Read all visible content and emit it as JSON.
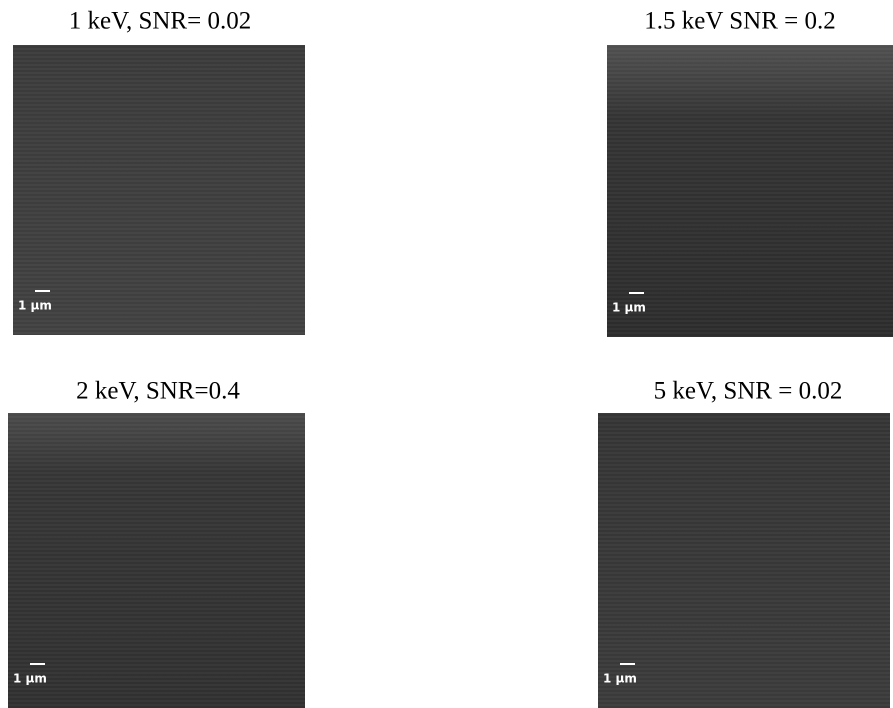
{
  "panels": [
    {
      "title": "1 keV, SNR= 0.02",
      "scale_bar": "1 µm"
    },
    {
      "title": "1.5 keV SNR = 0.2",
      "scale_bar": "1 µm"
    },
    {
      "title": "2 keV, SNR=0.4",
      "scale_bar": "1 µm"
    },
    {
      "title": "5 keV, SNR = 0.02",
      "scale_bar": "1 µm"
    }
  ]
}
